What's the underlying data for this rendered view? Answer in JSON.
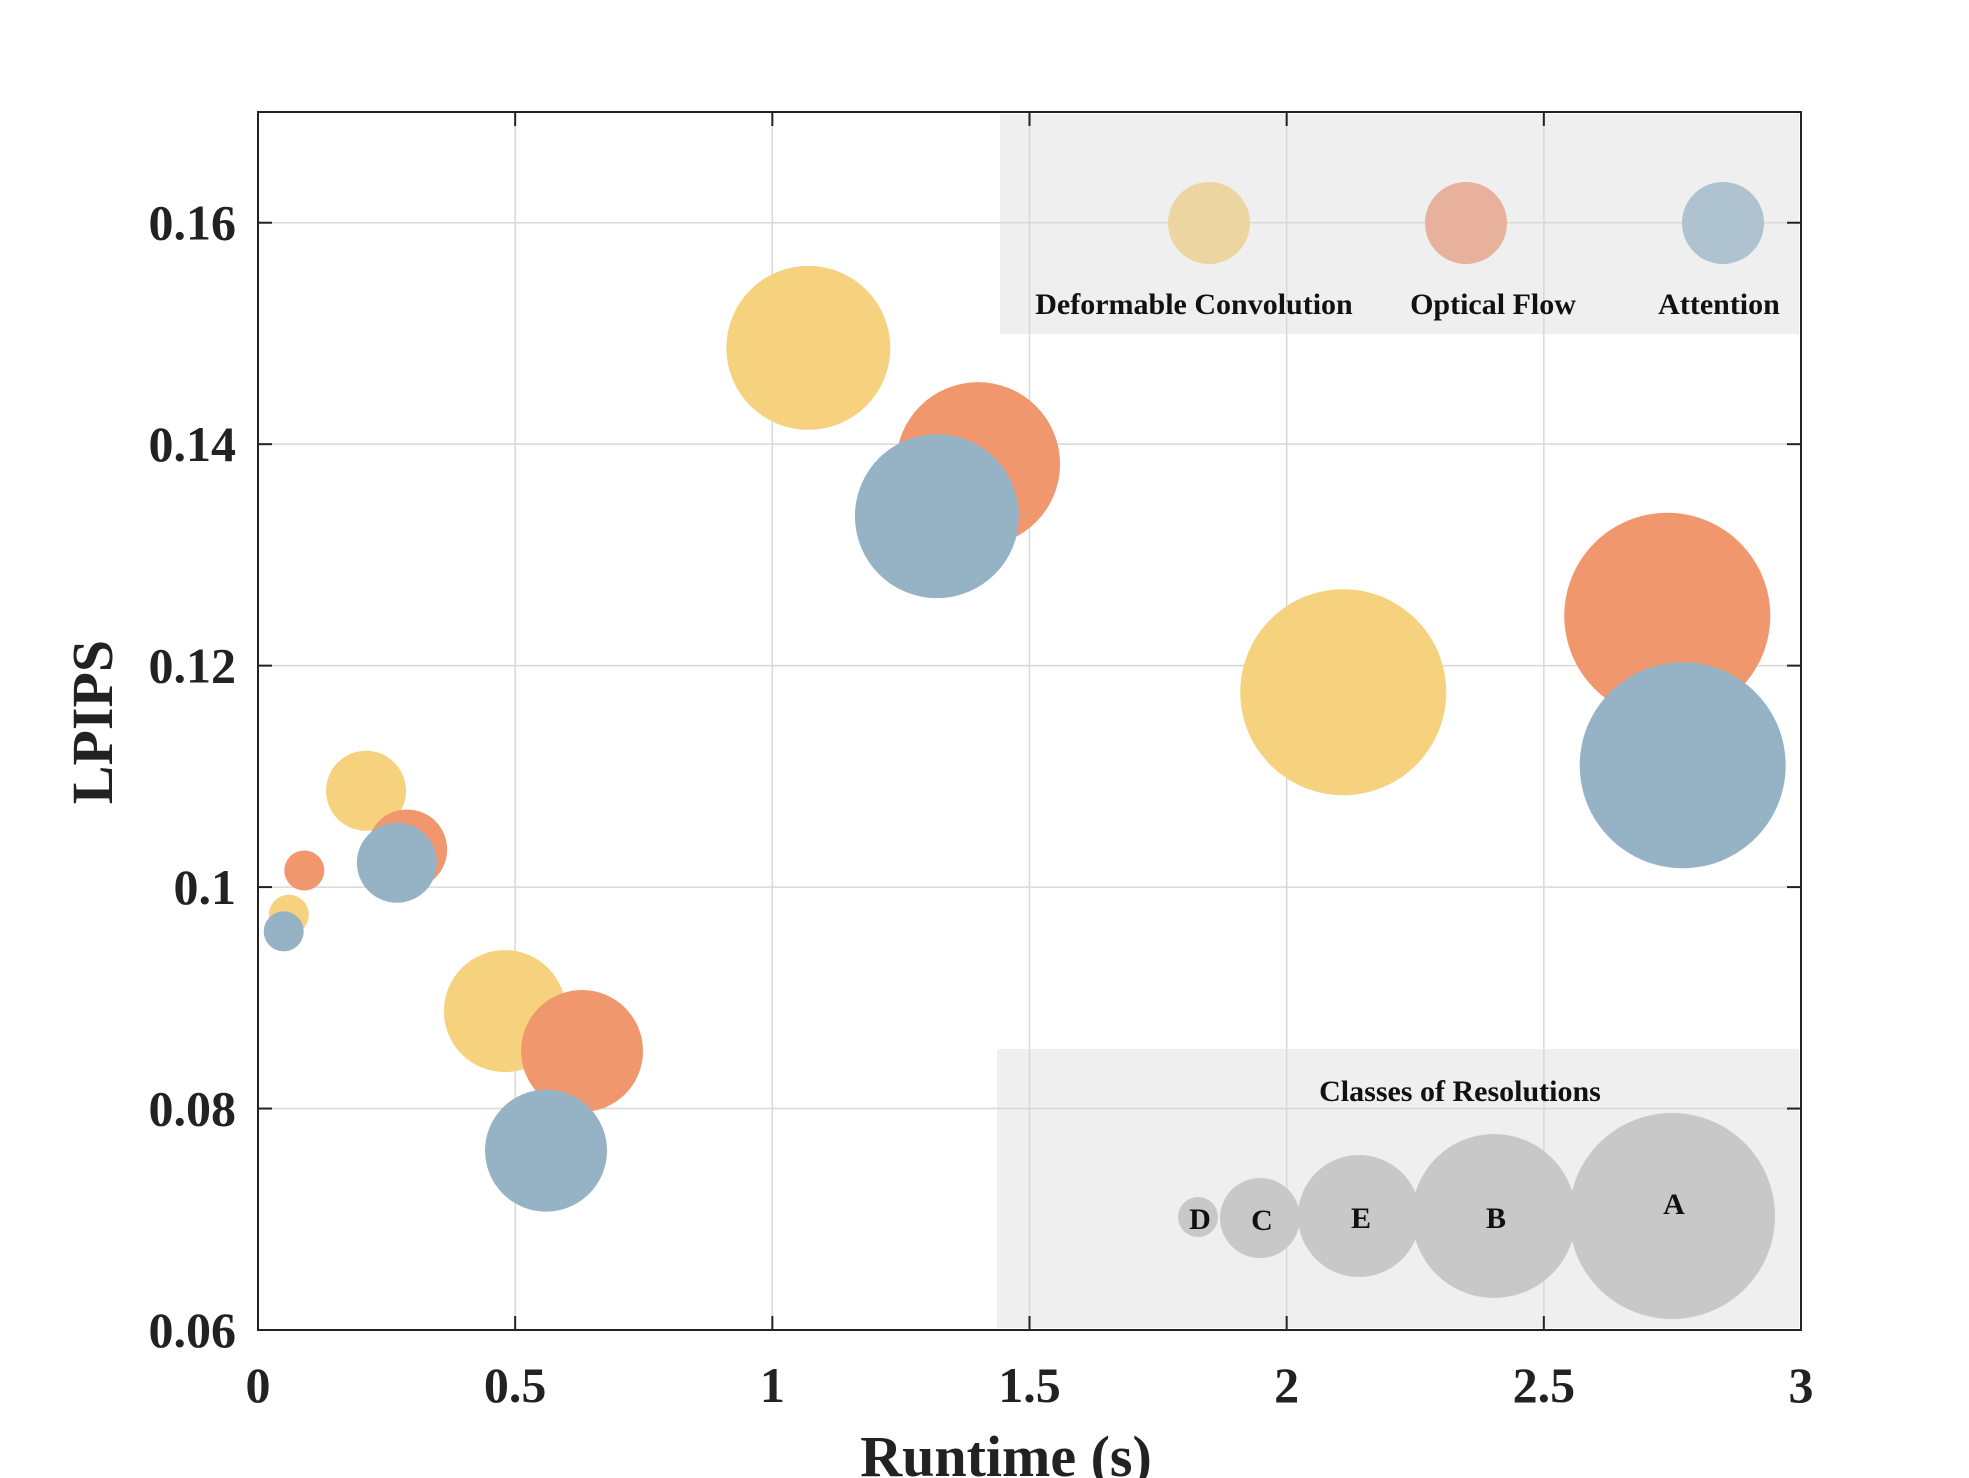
{
  "chart_data": {
    "type": "scatter",
    "variant": "bubble",
    "xlabel": "Runtime (s)",
    "ylabel": "LPIPS",
    "xlim": [
      0,
      3
    ],
    "ylim": [
      0.06,
      0.17
    ],
    "xticks": [
      0,
      0.5,
      1,
      1.5,
      2,
      2.5,
      3
    ],
    "xtick_labels": [
      "0",
      "0.5",
      "1",
      "1.5",
      "2",
      "2.5",
      "3"
    ],
    "yticks": [
      0.06,
      0.08,
      0.1,
      0.12,
      0.14,
      0.16
    ],
    "ytick_labels": [
      "0.06",
      "0.08",
      "0.1",
      "0.12",
      "0.14",
      "0.16"
    ],
    "grid": true,
    "legend_position": "top-right",
    "size_legend_position": "bottom-right",
    "series": [
      {
        "name": "Deformable Convolution",
        "color": "#F6D27E",
        "legend_color": "#EDD5A2",
        "points": [
          {
            "x": 0.06,
            "y": 0.0975,
            "class": "D"
          },
          {
            "x": 0.21,
            "y": 0.1087,
            "class": "C"
          },
          {
            "x": 0.48,
            "y": 0.0888,
            "class": "E"
          },
          {
            "x": 1.07,
            "y": 0.1487,
            "class": "B"
          },
          {
            "x": 2.11,
            "y": 0.1176,
            "class": "A"
          }
        ]
      },
      {
        "name": "Optical Flow",
        "color": "#F0976E",
        "legend_color": "#E7B19C",
        "points": [
          {
            "x": 0.09,
            "y": 0.1015,
            "class": "D"
          },
          {
            "x": 0.29,
            "y": 0.1034,
            "class": "C"
          },
          {
            "x": 0.63,
            "y": 0.0852,
            "class": "E"
          },
          {
            "x": 1.4,
            "y": 0.1382,
            "class": "B"
          },
          {
            "x": 2.74,
            "y": 0.1245,
            "class": "A"
          }
        ]
      },
      {
        "name": "Attention",
        "color": "#96B2C5",
        "legend_color": "#AEC2CF",
        "points": [
          {
            "x": 0.05,
            "y": 0.096,
            "class": "D"
          },
          {
            "x": 0.27,
            "y": 0.1022,
            "class": "C"
          },
          {
            "x": 0.56,
            "y": 0.0762,
            "class": "E"
          },
          {
            "x": 1.32,
            "y": 0.1335,
            "class": "B"
          },
          {
            "x": 2.77,
            "y": 0.111,
            "class": "A"
          }
        ]
      }
    ],
    "size_legend": {
      "title": "Classes of Resolutions",
      "classes": [
        "D",
        "C",
        "E",
        "B",
        "A"
      ],
      "color": "#C8C8C8"
    }
  }
}
